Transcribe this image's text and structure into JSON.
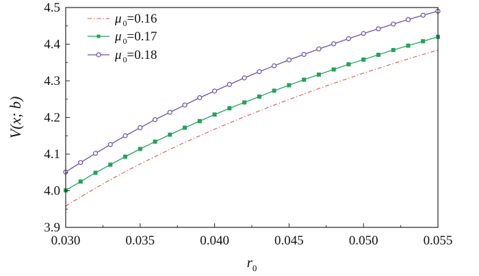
{
  "chart_data": {
    "type": "line",
    "title": "",
    "xlabel": "r",
    "xlabel_sub": "0",
    "ylabel": "V(x; b)",
    "xlim": [
      0.03,
      0.055
    ],
    "ylim": [
      3.9,
      4.5
    ],
    "xticks": [
      "0.030",
      "0.035",
      "0.040",
      "0.045",
      "0.050",
      "0.055"
    ],
    "yticks": [
      "3.9",
      "4.0",
      "4.1",
      "4.2",
      "4.3",
      "4.4",
      "4.5"
    ],
    "grid": false,
    "legend_position": "top-left",
    "x": [
      0.03,
      0.031,
      0.032,
      0.033,
      0.034,
      0.035,
      0.036,
      0.037,
      0.038,
      0.039,
      0.04,
      0.041,
      0.042,
      0.043,
      0.044,
      0.045,
      0.046,
      0.047,
      0.048,
      0.049,
      0.05,
      0.051,
      0.052,
      0.053,
      0.054,
      0.055
    ],
    "series": [
      {
        "name": "μ0=0.16",
        "legend_symbol": "μ",
        "legend_sub": "0",
        "legend_value": "=0.16",
        "color": "#d9534f",
        "line_style": "dash-dot",
        "marker": "none",
        "values": [
          3.958,
          3.983,
          4.007,
          4.03,
          4.052,
          4.073,
          4.093,
          4.113,
          4.132,
          4.15,
          4.168,
          4.185,
          4.202,
          4.218,
          4.234,
          4.249,
          4.264,
          4.279,
          4.293,
          4.307,
          4.321,
          4.334,
          4.347,
          4.36,
          4.372,
          4.384
        ]
      },
      {
        "name": "μ0=0.17",
        "legend_symbol": "μ",
        "legend_sub": "0",
        "legend_value": "=0.17",
        "color": "#22a35a",
        "line_style": "solid",
        "marker": "filled-square",
        "values": [
          4.001,
          4.025,
          4.049,
          4.071,
          4.093,
          4.114,
          4.134,
          4.153,
          4.172,
          4.19,
          4.208,
          4.225,
          4.241,
          4.257,
          4.273,
          4.288,
          4.303,
          4.317,
          4.331,
          4.345,
          4.358,
          4.371,
          4.384,
          4.396,
          4.408,
          4.42
        ]
      },
      {
        "name": "μ0=0.18",
        "legend_symbol": "μ",
        "legend_sub": "0",
        "legend_value": "=0.18",
        "color": "#6a4fa8",
        "line_style": "solid",
        "marker": "open-circle",
        "values": [
          4.051,
          4.077,
          4.102,
          4.126,
          4.15,
          4.172,
          4.194,
          4.214,
          4.234,
          4.254,
          4.272,
          4.29,
          4.308,
          4.325,
          4.341,
          4.357,
          4.372,
          4.387,
          4.401,
          4.415,
          4.429,
          4.442,
          4.455,
          4.467,
          4.479,
          4.49
        ]
      }
    ]
  }
}
